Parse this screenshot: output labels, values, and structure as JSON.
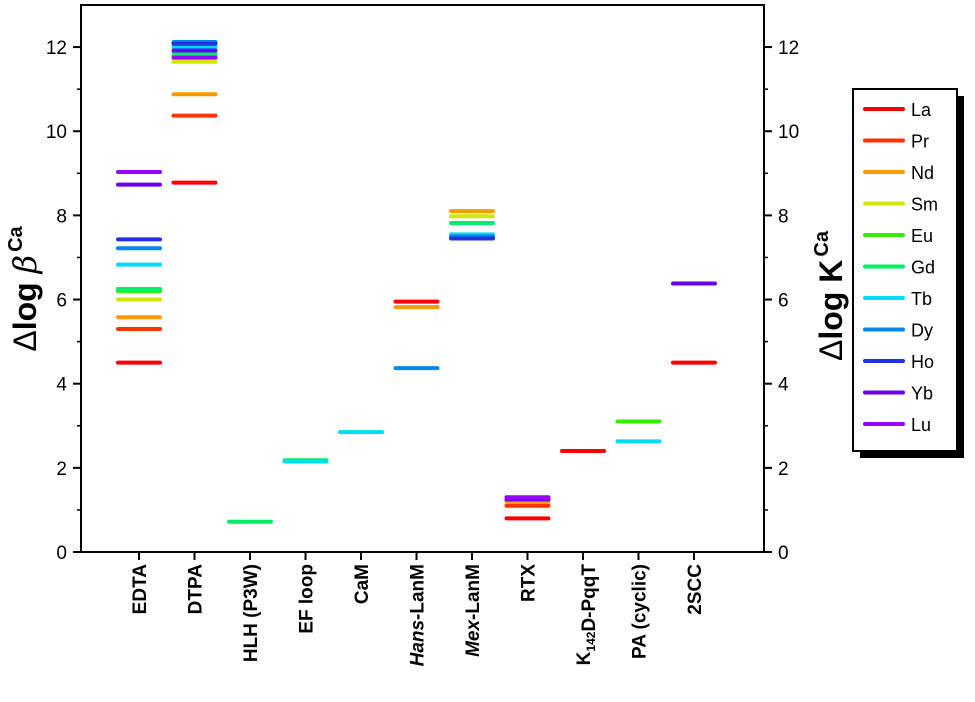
{
  "chart_data": {
    "type": "scatter",
    "marker": "horizontal-dash",
    "categories": [
      {
        "parts": [
          {
            "text": "EDTA"
          }
        ]
      },
      {
        "parts": [
          {
            "text": "DTPA"
          }
        ]
      },
      {
        "parts": [
          {
            "text": "HLH (P3W)"
          }
        ]
      },
      {
        "parts": [
          {
            "text": "EF loop"
          }
        ]
      },
      {
        "parts": [
          {
            "text": "CaM"
          }
        ]
      },
      {
        "parts": [
          {
            "text": "Hans",
            "style": "italic"
          },
          {
            "text": "-LanM"
          }
        ]
      },
      {
        "parts": [
          {
            "text": "Mex",
            "style": "italic"
          },
          {
            "text": "-LanM"
          }
        ]
      },
      {
        "parts": [
          {
            "text": "RTX"
          }
        ]
      },
      {
        "parts": [
          {
            "text": "K"
          },
          {
            "text": "142",
            "style": "sub"
          },
          {
            "text": "D-PqqT"
          }
        ]
      },
      {
        "parts": [
          {
            "text": "PA (cyclic)"
          }
        ]
      },
      {
        "parts": [
          {
            "text": "2SCC"
          }
        ]
      }
    ],
    "ylabel_left": {
      "delta": "Δ",
      "word": "log ",
      "symbol": "β",
      "sup": "Ca"
    },
    "ylabel_right": {
      "delta": "Δ",
      "word": "log K",
      "sup": "Ca"
    },
    "ylim": [
      0,
      13
    ],
    "yticks": [
      0,
      2,
      4,
      6,
      8,
      10,
      12
    ],
    "grid": false,
    "legend_position": "right",
    "series": [
      {
        "name": "La",
        "color": "#ff0000",
        "values": [
          4.5,
          8.78,
          null,
          null,
          null,
          5.95,
          null,
          0.8,
          2.4,
          null,
          4.5
        ]
      },
      {
        "name": "Pr",
        "color": "#ff3300",
        "values": [
          5.3,
          10.37,
          null,
          null,
          null,
          null,
          null,
          1.1,
          null,
          null,
          null
        ]
      },
      {
        "name": "Nd",
        "color": "#ff9900",
        "values": [
          5.58,
          10.88,
          null,
          null,
          null,
          5.82,
          8.1,
          1.2,
          null,
          null,
          null
        ]
      },
      {
        "name": "Sm",
        "color": "#d4e600",
        "values": [
          6.0,
          11.65,
          null,
          null,
          null,
          null,
          7.98,
          null,
          null,
          null,
          null
        ]
      },
      {
        "name": "Eu",
        "color": "#33ee00",
        "values": [
          6.2,
          11.8,
          null,
          null,
          null,
          null,
          null,
          null,
          null,
          3.1,
          null
        ]
      },
      {
        "name": "Gd",
        "color": "#00ee66",
        "values": [
          6.25,
          11.85,
          0.72,
          2.18,
          null,
          null,
          7.82,
          null,
          null,
          null,
          null
        ]
      },
      {
        "name": "Tb",
        "color": "#00ddee",
        "values": [
          6.83,
          12.0,
          null,
          2.15,
          2.85,
          null,
          7.55,
          null,
          null,
          2.63,
          null
        ]
      },
      {
        "name": "Dy",
        "color": "#0088ee",
        "values": [
          7.22,
          12.12,
          null,
          null,
          null,
          4.37,
          7.5,
          null,
          null,
          null,
          null
        ]
      },
      {
        "name": "Ho",
        "color": "#2233dd",
        "values": [
          7.43,
          12.08,
          null,
          null,
          null,
          null,
          7.45,
          null,
          null,
          null,
          null
        ]
      },
      {
        "name": "Yb",
        "color": "#6600ee",
        "values": [
          8.73,
          11.92,
          null,
          null,
          null,
          null,
          null,
          1.25,
          null,
          null,
          6.38
        ]
      },
      {
        "name": "Lu",
        "color": "#9900ff",
        "values": [
          9.03,
          11.75,
          null,
          null,
          null,
          null,
          null,
          1.3,
          null,
          null,
          null
        ]
      }
    ]
  }
}
